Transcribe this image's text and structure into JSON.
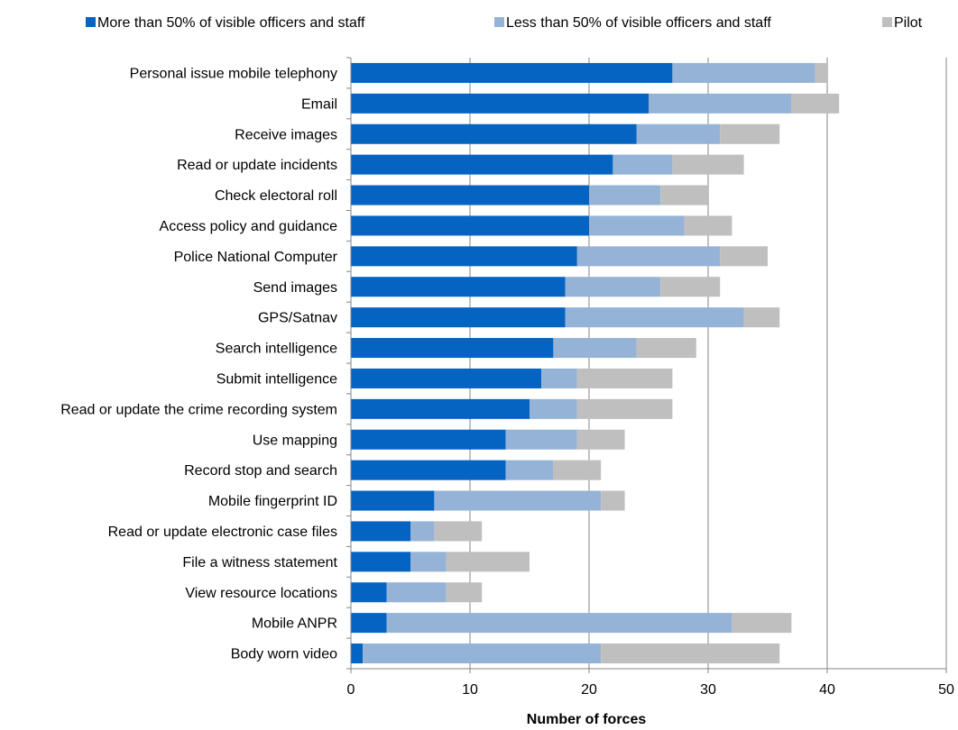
{
  "chart_data": {
    "type": "bar",
    "orientation": "horizontal",
    "stacked": true,
    "title": "",
    "xlabel": "Number of forces",
    "ylabel": "",
    "xlim": [
      0,
      50
    ],
    "xticks": [
      0,
      10,
      20,
      30,
      40,
      50
    ],
    "grid": "vertical",
    "legend_position": "top",
    "categories": [
      "Personal issue mobile telephony",
      "Email",
      "Receive images",
      "Read or update incidents",
      "Check electoral roll",
      "Access policy and guidance",
      "Police National Computer",
      "Send images",
      "GPS/Satnav",
      "Search intelligence",
      "Submit intelligence",
      "Read or update the crime recording system",
      "Use mapping",
      "Record stop and search",
      "Mobile fingerprint ID",
      "Read or update electronic case files",
      "File a witness statement",
      "View resource locations",
      "Mobile ANPR",
      "Body worn video"
    ],
    "series": [
      {
        "name": "More than 50% of visible officers and staff",
        "color": "#0563C1",
        "values": [
          27,
          25,
          24,
          22,
          20,
          20,
          19,
          18,
          18,
          17,
          16,
          15,
          13,
          13,
          7,
          5,
          5,
          3,
          3,
          1
        ]
      },
      {
        "name": "Less than 50% of visible officers and staff",
        "color": "#95B3D7",
        "values": [
          12,
          12,
          7,
          5,
          6,
          8,
          12,
          8,
          15,
          7,
          3,
          4,
          6,
          4,
          14,
          2,
          3,
          5,
          29,
          20
        ]
      },
      {
        "name": "Pilot",
        "color": "#BFBFBF",
        "values": [
          1,
          4,
          5,
          6,
          4,
          4,
          4,
          5,
          3,
          5,
          8,
          8,
          4,
          4,
          2,
          4,
          7,
          3,
          5,
          15
        ]
      }
    ]
  }
}
